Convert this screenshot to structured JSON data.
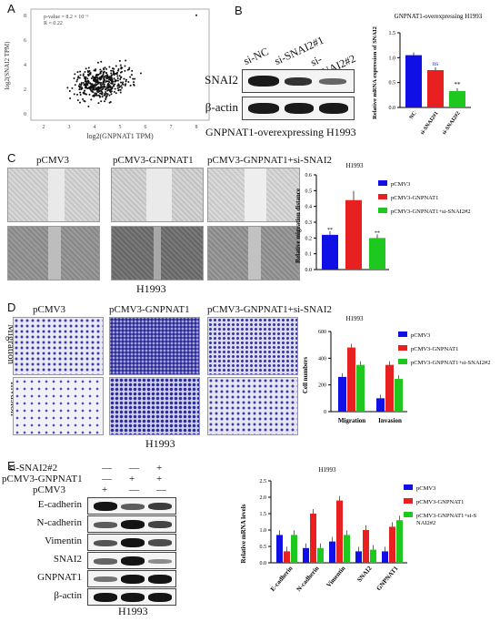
{
  "panelA": {
    "label": "A",
    "annotation_p": "p-value = 8.2 × 10⁻⁶",
    "annotation_r": "R = 0.22",
    "xlabel": "log2(GNPNAT1 TPM)",
    "ylabel": "log2(SNAI2 TPM)",
    "xticks": [
      "2",
      "3",
      "4",
      "5",
      "6",
      "7",
      "8"
    ],
    "yticks": [
      "0",
      "2",
      "4",
      "6",
      "8"
    ]
  },
  "panelB": {
    "label": "B",
    "lanes": [
      "si-NC",
      "si-SNAI2#1",
      "si-SNAI2#2"
    ],
    "rows": [
      "SNAI2",
      "β-actin"
    ],
    "caption": "GNPNAT1-overexpressing H1993",
    "chart_title": "GNPNAT1-overexpressing H1993",
    "chart_ylabel": "Relative mRNA expression of SNAI2",
    "yticks": [
      "0.0",
      "0.5",
      "1.0",
      "1.5"
    ],
    "sig": [
      "",
      "ns",
      "**"
    ]
  },
  "panelC": {
    "label": "C",
    "col_titles": [
      "pCMV3",
      "pCMV3-GNPNAT1",
      "pCMV3-GNPNAT1+si-SNAI2"
    ],
    "bottom": "H1993",
    "chart_title": "H1993",
    "chart_ylabel": "Relative migration distance",
    "yticks": [
      "0.0",
      "0.1",
      "0.2",
      "0.3",
      "0.4",
      "0.5",
      "0.6"
    ],
    "legend": [
      "pCMV3",
      "pCMV3-GNPNAT1",
      "pCMV3-GNPNAT1+si-SNAI2#2"
    ],
    "sig": [
      "**",
      "",
      "**"
    ]
  },
  "panelD": {
    "label": "D",
    "col_titles": [
      "pCMV3",
      "pCMV3-GNPNAT1",
      "pCMV3-GNPNAT1+si-SNAI2"
    ],
    "row_titles": [
      "Migration",
      "Invasion"
    ],
    "bottom": "H1993",
    "chart_title": "H1993",
    "chart_ylabel": "Cell numbers",
    "yticks": [
      "0",
      "200",
      "400",
      "600"
    ],
    "legend": [
      "pCMV3",
      "pCMV3-GNPNAT1",
      "pCMV3-GNPNAT1+si-SNAI2#2"
    ],
    "groups": [
      "Migration",
      "Invasion"
    ]
  },
  "panelE": {
    "label": "E",
    "cond_rows": [
      {
        "name": "si-SNAI2#2",
        "marks": [
          "—",
          "—",
          "+"
        ]
      },
      {
        "name": "pCMV3-GNPNAT1",
        "marks": [
          "—",
          "+",
          "+"
        ]
      },
      {
        "name": "pCMV3",
        "marks": [
          "+",
          "—",
          "—"
        ]
      }
    ],
    "blot_rows": [
      "E-cadherin",
      "N-cadherin",
      "Vimentin",
      "SNAI2",
      "GNPNAT1",
      "β-actin"
    ],
    "bottom": "H1993",
    "chart_title": "H1993",
    "chart_ylabel": "Relative mRNA levels",
    "yticks": [
      "0.0",
      "0.5",
      "1.0",
      "1.5",
      "2.0",
      "2.5"
    ],
    "legend": [
      "pCMV3",
      "pCMV3-GNPNAT1",
      "pCMV3-GNPNAT1+si-S NAI2#2"
    ],
    "categories": [
      "E-cadherin",
      "N-cadherin",
      "Vimentin",
      "SNAI2",
      "GNPNAT1"
    ]
  },
  "colors": {
    "blue": "#1010e6",
    "red": "#e82020",
    "green": "#1ec81e",
    "ns_blue": "#2f2fd0"
  },
  "chart_data": [
    {
      "type": "scatter",
      "title": "",
      "xlabel": "log2(GNPNAT1 TPM)",
      "ylabel": "log2(SNAI2 TPM)",
      "xlim": [
        1.5,
        8.5
      ],
      "ylim": [
        -0.5,
        8.5
      ]
    },
    {
      "type": "bar",
      "title": "GNPNAT1-overexpressing H1993",
      "categories": [
        "NC",
        "si-SNAI2#1",
        "si-SNAI2#2"
      ],
      "values": [
        1.05,
        0.75,
        0.33
      ],
      "colors": [
        "#1010e6",
        "#e82020",
        "#1ec81e"
      ],
      "ylabel": "Relative mRNA expression of SNAI2",
      "ylim": [
        0,
        1.5
      ]
    },
    {
      "type": "bar",
      "title": "H1993",
      "categories": [
        "pCMV3",
        "pCMV3-GNPNAT1",
        "pCMV3-GNPNAT1+si-SNAI2#2"
      ],
      "values": [
        0.22,
        0.44,
        0.2
      ],
      "ylabel": "Relative migration distance",
      "ylim": [
        0,
        0.6
      ]
    },
    {
      "type": "bar",
      "title": "H1993",
      "categories": [
        "Migration",
        "Invasion"
      ],
      "series": [
        {
          "name": "pCMV3",
          "values": [
            260,
            100
          ]
        },
        {
          "name": "pCMV3-GNPNAT1",
          "values": [
            480,
            350
          ]
        },
        {
          "name": "pCMV3-GNPNAT1+si-SNAI2#2",
          "values": [
            350,
            245
          ]
        }
      ],
      "ylabel": "Cell numbers",
      "ylim": [
        0,
        600
      ]
    },
    {
      "type": "bar",
      "title": "H1993",
      "categories": [
        "E-cadherin",
        "N-cadherin",
        "Vimentin",
        "SNAI2",
        "GNPNAT1"
      ],
      "series": [
        {
          "name": "pCMV3",
          "values": [
            0.85,
            0.45,
            0.65,
            0.35,
            0.35
          ]
        },
        {
          "name": "pCMV3-GNPNAT1",
          "values": [
            0.35,
            1.5,
            1.9,
            1.0,
            1.1
          ]
        },
        {
          "name": "pCMV3-GNPNAT1+si-S NAI2#2",
          "values": [
            0.85,
            0.45,
            0.85,
            0.4,
            1.3
          ]
        }
      ],
      "ylabel": "Relative mRNA levels",
      "ylim": [
        0,
        2.5
      ]
    }
  ]
}
